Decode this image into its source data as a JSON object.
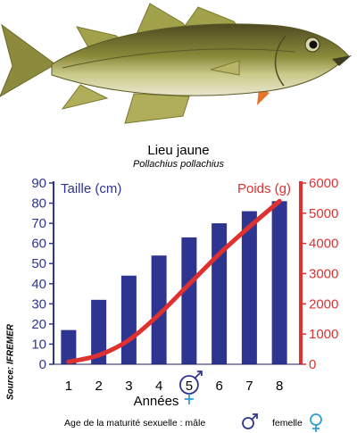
{
  "title": "Lieu jaune",
  "subtitle": "Pollachius pollachius",
  "source": "Source: IFREMER",
  "maturity_note": "Age de la maturité sexuelle : mâle",
  "maturity_female": "femelle",
  "colors": {
    "bars": "#2e3590",
    "weight_line": "#e03131",
    "size_axis": "#2e3590",
    "weight_axis": "#e03131",
    "female": "#2f9fd6"
  },
  "chart_data": {
    "type": "bar",
    "categories": [
      "1",
      "2",
      "3",
      "4",
      "5",
      "6",
      "7",
      "8"
    ],
    "xlabel": "Années",
    "series": [
      {
        "name": "Taille (cm)",
        "type": "bar",
        "axis": "left",
        "values": [
          17,
          32,
          44,
          54,
          63,
          70,
          76,
          81
        ]
      },
      {
        "name": "Poids (g)",
        "type": "line",
        "axis": "right",
        "values": [
          80,
          300,
          800,
          1650,
          2650,
          3650,
          4550,
          5400
        ]
      }
    ],
    "y_left": {
      "label": "Taille (cm)",
      "min": 0,
      "max": 90,
      "ticks": [
        0,
        10,
        20,
        30,
        40,
        50,
        60,
        70,
        80,
        90
      ]
    },
    "y_right": {
      "label": "Poids (g)",
      "min": 0,
      "max": 6000,
      "ticks": [
        0,
        1000,
        2000,
        3000,
        4000,
        5000,
        6000
      ]
    },
    "highlighted_category": "5",
    "grid": false,
    "legend": "inside-top"
  }
}
